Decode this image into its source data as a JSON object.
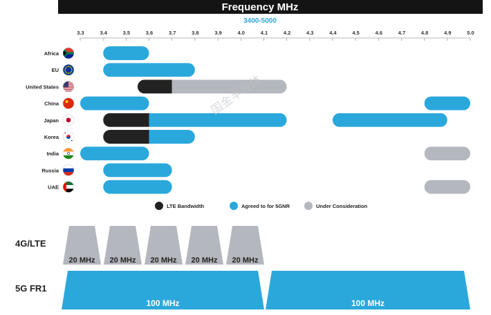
{
  "chart_data": {
    "type": "bar",
    "title": "Frequency MHz",
    "subtitle": "3400-5000",
    "xlim": [
      3.3,
      5.0
    ],
    "x_ticks": [
      "3.3",
      "3.4",
      "3.5",
      "3.6",
      "3.7",
      "3.8",
      "3.9",
      "4.0",
      "4.1",
      "4.2",
      "4.3",
      "4.4",
      "4.5",
      "4.6",
      "4.7",
      "4.8",
      "4.9",
      "5.0"
    ],
    "categories": [
      "Africa",
      "EU",
      "United States",
      "China",
      "Japan",
      "Korea",
      "India",
      "Russia",
      "UAE"
    ],
    "legend": [
      {
        "key": "lte",
        "label": "LTE Bandwidth"
      },
      {
        "key": "agreed",
        "label": "Agreed to for 5GNR"
      },
      {
        "key": "under",
        "label": "Under Consideration"
      }
    ],
    "colors": {
      "lte": "#222222",
      "agreed": "#2aa8dc",
      "under": "#b4b7bd",
      "header_bg": "#141414",
      "subtitle": "#2aa8dc"
    },
    "flags": [
      "south-africa-flag-icon",
      "eu-flag-icon",
      "us-flag-icon",
      "china-flag-icon",
      "japan-flag-icon",
      "korea-flag-icon",
      "india-flag-icon",
      "russia-flag-icon",
      "uae-flag-icon"
    ],
    "bars": [
      {
        "region": "Africa",
        "segments": [
          {
            "type": "agreed",
            "start": 3.4,
            "end": 3.6
          }
        ]
      },
      {
        "region": "EU",
        "segments": [
          {
            "type": "agreed",
            "start": 3.4,
            "end": 3.8
          }
        ]
      },
      {
        "region": "United States",
        "segments": [
          {
            "type": "lte",
            "start": 3.55,
            "end": 3.7
          },
          {
            "type": "under",
            "start": 3.7,
            "end": 4.2
          }
        ]
      },
      {
        "region": "China",
        "segments": [
          {
            "type": "agreed",
            "start": 3.3,
            "end": 3.6
          },
          {
            "type": "agreed",
            "start": 4.8,
            "end": 5.0
          }
        ]
      },
      {
        "region": "Japan",
        "segments": [
          {
            "type": "lte",
            "start": 3.4,
            "end": 3.6
          },
          {
            "type": "agreed",
            "start": 3.6,
            "end": 4.2
          },
          {
            "type": "agreed",
            "start": 4.4,
            "end": 4.9
          }
        ]
      },
      {
        "region": "Korea",
        "segments": [
          {
            "type": "lte",
            "start": 3.4,
            "end": 3.6
          },
          {
            "type": "agreed",
            "start": 3.6,
            "end": 3.8
          }
        ]
      },
      {
        "region": "India",
        "segments": [
          {
            "type": "agreed",
            "start": 3.3,
            "end": 3.6
          },
          {
            "type": "under",
            "start": 4.8,
            "end": 5.0
          }
        ]
      },
      {
        "region": "Russia",
        "segments": [
          {
            "type": "agreed",
            "start": 3.4,
            "end": 3.7
          }
        ]
      },
      {
        "region": "UAE",
        "segments": [
          {
            "type": "agreed",
            "start": 3.4,
            "end": 3.7
          },
          {
            "type": "under",
            "start": 4.8,
            "end": 5.0
          }
        ]
      }
    ],
    "channels_4g": {
      "label": "4G/LTE",
      "blocks": [
        {
          "label": "20 MHz"
        },
        {
          "label": "20 MHz"
        },
        {
          "label": "20 MHz"
        },
        {
          "label": "20 MHz"
        },
        {
          "label": "20 MHz"
        }
      ],
      "color": "#b4b7bd"
    },
    "channels_5g": {
      "label": "5G FR1",
      "blocks": [
        {
          "label": "100 MHz"
        },
        {
          "label": "100 MHz"
        }
      ],
      "color": "#2aa8dc"
    },
    "watermark": "国金半导体"
  }
}
